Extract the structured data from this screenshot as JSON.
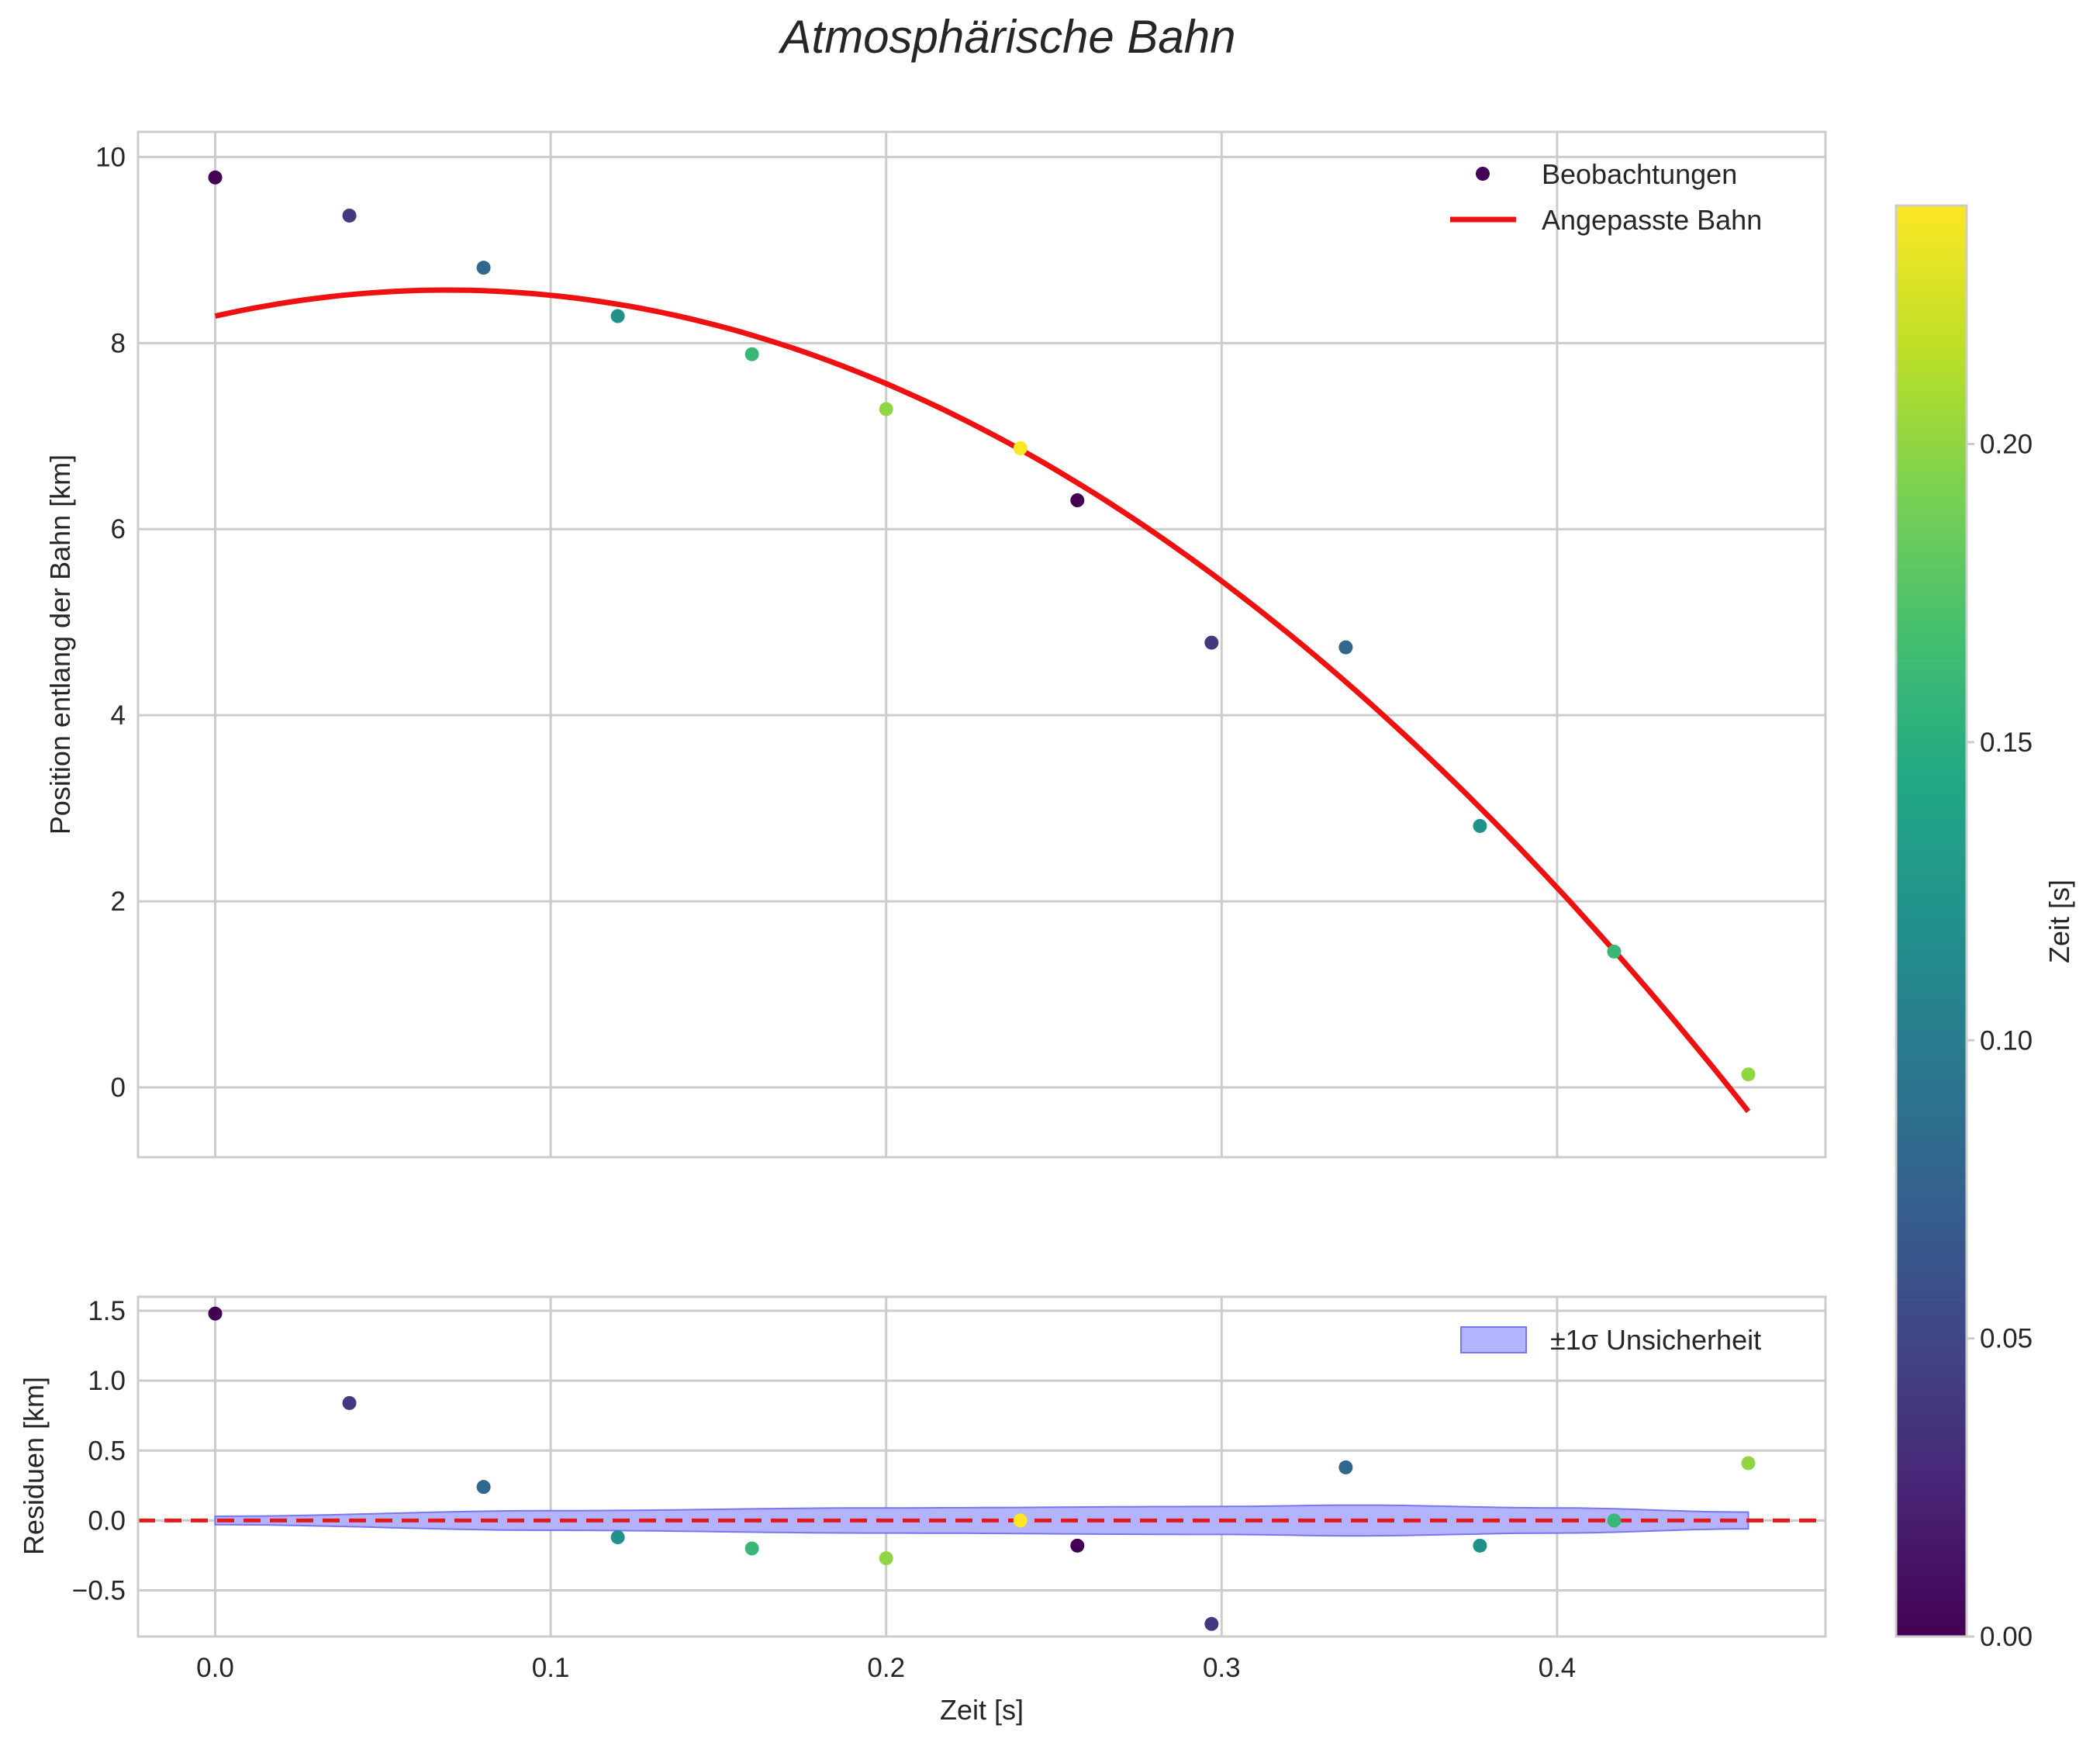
{
  "chart_data": {
    "type": "scatter",
    "title": "Atmosphärische Bahn",
    "xlabel": "Zeit [s]",
    "xlim": [
      -0.023,
      0.48
    ],
    "xticks": [
      0.0,
      0.1,
      0.2,
      0.3,
      0.4
    ],
    "xtick_labels": [
      "0.0",
      "0.1",
      "0.2",
      "0.3",
      "0.4"
    ],
    "times": [
      0.0,
      0.04,
      0.08,
      0.12,
      0.16,
      0.2,
      0.24,
      0.257,
      0.297,
      0.337,
      0.377,
      0.417,
      0.457
    ],
    "time_colors": [
      0.0,
      0.04,
      0.08,
      0.12,
      0.16,
      0.2,
      0.24,
      0.0,
      0.04,
      0.08,
      0.12,
      0.16,
      0.2
    ],
    "top_panel": {
      "ylabel": "Position entlang der Bahn [km]",
      "ylim": [
        -0.75,
        10.27
      ],
      "yticks": [
        0,
        2,
        4,
        6,
        8,
        10
      ],
      "ytick_labels": [
        "0",
        "2",
        "4",
        "6",
        "8",
        "10"
      ],
      "observations": [
        9.78,
        9.37,
        8.81,
        8.29,
        7.88,
        7.29,
        6.87,
        6.31,
        4.78,
        4.73,
        2.81,
        1.46,
        0.14
      ],
      "fit": {
        "model": "quadratic",
        "coefficients": [
          8.29,
          8.1,
          -58.65
        ],
        "x_range": [
          0.0,
          0.457
        ]
      },
      "legend": {
        "observations_label": "Beobachtungen",
        "fit_label": "Angepasste Bahn",
        "position": "top-right"
      }
    },
    "bottom_panel": {
      "ylabel": "Residuen [km]",
      "ylim": [
        -0.83,
        1.6
      ],
      "yticks": [
        -0.5,
        0.0,
        0.5,
        1.0,
        1.5
      ],
      "ytick_labels": [
        "−0.5",
        "0.0",
        "0.5",
        "1.0",
        "1.5"
      ],
      "residuals": [
        1.48,
        0.84,
        0.24,
        -0.12,
        -0.2,
        -0.27,
        0.0,
        -0.18,
        -0.74,
        0.38,
        -0.18,
        0.0,
        0.41
      ],
      "uncertainty_x": [
        0.0,
        0.1,
        0.2,
        0.3,
        0.34,
        0.4,
        0.457
      ],
      "uncertainty_sigma": [
        0.03,
        0.07,
        0.09,
        0.1,
        0.11,
        0.09,
        0.06
      ],
      "uncertainty_label": "±1σ Unsicherheit",
      "zero_line": 0.0,
      "legend_position": "top-right"
    },
    "colorbar": {
      "label": "Zeit [s]",
      "colormap": "viridis",
      "range": [
        0.0,
        0.24
      ],
      "ticks": [
        0.0,
        0.05,
        0.1,
        0.15,
        0.2
      ],
      "tick_labels": [
        "0.00",
        "0.05",
        "0.10",
        "0.15",
        "0.20"
      ]
    },
    "colors": {
      "fit_line": "#ee1111",
      "zero_line": "#e31a1c",
      "band_fill": "#b3b3ff",
      "band_edge": "#7777ee",
      "grid": "#cccccc"
    }
  }
}
